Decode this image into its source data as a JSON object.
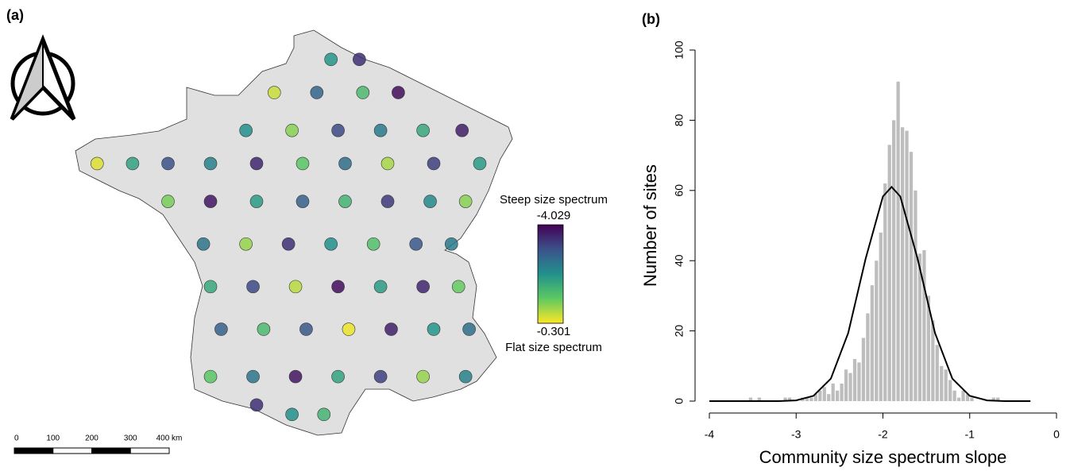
{
  "chart_data": [
    {
      "type": "map",
      "title": "(a)",
      "lon": [
        2.6,
        3.4,
        1.0,
        2.2,
        3.5,
        4.5,
        0.2,
        1.5,
        2.8,
        4.0,
        5.2,
        6.3,
        -4.0,
        -3.0,
        -2.0,
        -0.8,
        0.5,
        1.8,
        3.0,
        4.2,
        5.5,
        6.8,
        -2.0,
        -0.8,
        0.5,
        1.8,
        3.0,
        4.2,
        5.4,
        6.4,
        -1.0,
        0.2,
        1.4,
        2.6,
        3.8,
        5.0,
        6.0,
        -0.8,
        0.4,
        1.6,
        2.8,
        4.0,
        5.2,
        6.2,
        -0.5,
        0.7,
        1.9,
        3.1,
        4.3,
        5.5,
        6.5,
        -0.8,
        0.4,
        1.6,
        2.8,
        4.0,
        5.2,
        6.4,
        0.5,
        1.5,
        2.4
      ],
      "lat": [
        50.5,
        50.5,
        49.8,
        49.8,
        49.8,
        49.8,
        49.0,
        49.0,
        49.0,
        49.0,
        49.0,
        49.0,
        48.3,
        48.3,
        48.3,
        48.3,
        48.3,
        48.3,
        48.3,
        48.3,
        48.3,
        48.3,
        47.5,
        47.5,
        47.5,
        47.5,
        47.5,
        47.5,
        47.5,
        47.5,
        46.6,
        46.6,
        46.6,
        46.6,
        46.6,
        46.6,
        46.6,
        45.7,
        45.7,
        45.7,
        45.7,
        45.7,
        45.7,
        45.7,
        44.8,
        44.8,
        44.8,
        44.8,
        44.8,
        44.8,
        44.8,
        43.8,
        43.8,
        43.8,
        43.8,
        43.8,
        43.8,
        43.8,
        43.2,
        43.0,
        43.0
      ],
      "values": [
        -2.1,
        -3.5,
        -0.6,
        -2.8,
        -1.5,
        -3.9,
        -2.2,
        -1.0,
        -3.2,
        -2.5,
        -1.8,
        -3.7,
        -0.5,
        -1.9,
        -3.1,
        -2.4,
        -3.6,
        -1.3,
        -2.7,
        -0.8,
        -3.3,
        -2.0,
        -1.1,
        -3.8,
        -2.0,
        -2.9,
        -1.6,
        -3.4,
        -2.3,
        -1.0,
        -2.6,
        -0.9,
        -3.5,
        -2.2,
        -1.4,
        -3.0,
        -2.5,
        -1.8,
        -3.2,
        -0.7,
        -3.9,
        -2.0,
        -3.6,
        -1.2,
        -2.9,
        -1.5,
        -3.0,
        -0.4,
        -3.7,
        -2.1,
        -2.7,
        -1.3,
        -2.6,
        -3.8,
        -1.9,
        -3.3,
        -0.9,
        -2.4,
        -3.5,
        -2.2,
        -1.6
      ],
      "colormap": [
        "#440154",
        "#3b528b",
        "#21918c",
        "#5ec962",
        "#fde725"
      ],
      "colorbar": {
        "top_label": "Steep size spectrum",
        "bottom_label": "Flat size spectrum",
        "range": [
          -4.029,
          -0.301
        ]
      },
      "scale_bar": [
        0,
        100,
        200,
        300,
        {
          "value": 400,
          "label": "400 km"
        }
      ]
    },
    {
      "type": "histogram",
      "title": "(b)",
      "xlabel": "Community size spectrum slope",
      "ylabel": "Number of sites",
      "bins": [
        -3.6,
        -3.55,
        -3.5,
        -3.45,
        -3.4,
        -3.35,
        -3.3,
        -3.25,
        -3.2,
        -3.15,
        -3.1,
        -3.05,
        -3.0,
        -2.95,
        -2.9,
        -2.85,
        -2.8,
        -2.75,
        -2.7,
        -2.65,
        -2.6,
        -2.55,
        -2.5,
        -2.45,
        -2.4,
        -2.35,
        -2.3,
        -2.25,
        -2.2,
        -2.15,
        -2.1,
        -2.05,
        -2.0,
        -1.95,
        -1.9,
        -1.85,
        -1.8,
        -1.75,
        -1.7,
        -1.65,
        -1.6,
        -1.55,
        -1.5,
        -1.45,
        -1.4,
        -1.35,
        -1.3,
        -1.25,
        -1.2,
        -1.15,
        -1.1,
        -1.05,
        -1.0,
        -0.95,
        -0.9,
        -0.85,
        -0.8,
        -0.75,
        -0.7,
        -0.65,
        -0.6
      ],
      "values": [
        0,
        1,
        0,
        1,
        0,
        0,
        0,
        0,
        0,
        1,
        1,
        0,
        0,
        1,
        1,
        1,
        2,
        3,
        4,
        2,
        5,
        3,
        5,
        9,
        8,
        12,
        11,
        18,
        25,
        33,
        40,
        48,
        62,
        73,
        80,
        91,
        78,
        77,
        71,
        60,
        42,
        43,
        30,
        23,
        16,
        10,
        9,
        6,
        3,
        1,
        3,
        2,
        1,
        0,
        0,
        0,
        0,
        1,
        1,
        0
      ],
      "color": "#bdbdbd",
      "curve": {
        "x": [
          -4,
          -3.5,
          -3.2,
          -3.0,
          -2.8,
          -2.6,
          -2.4,
          -2.2,
          -2.0,
          -1.9,
          -1.8,
          -1.6,
          -1.4,
          -1.2,
          -1.0,
          -0.8,
          -0.6,
          -0.3
        ],
        "values": [
          0,
          0,
          0,
          0.2,
          1.5,
          6.4,
          19.4,
          40.5,
          58.3,
          61,
          58.3,
          40.5,
          19.4,
          6.4,
          1.5,
          0.2,
          0,
          0
        ],
        "color": "#000000"
      },
      "xlim": [
        -4,
        0
      ],
      "xticks": [
        -4,
        -3,
        -2,
        -1,
        0
      ],
      "ylim": [
        0,
        100
      ],
      "yticks": [
        0,
        20,
        40,
        60,
        80,
        100
      ]
    }
  ]
}
